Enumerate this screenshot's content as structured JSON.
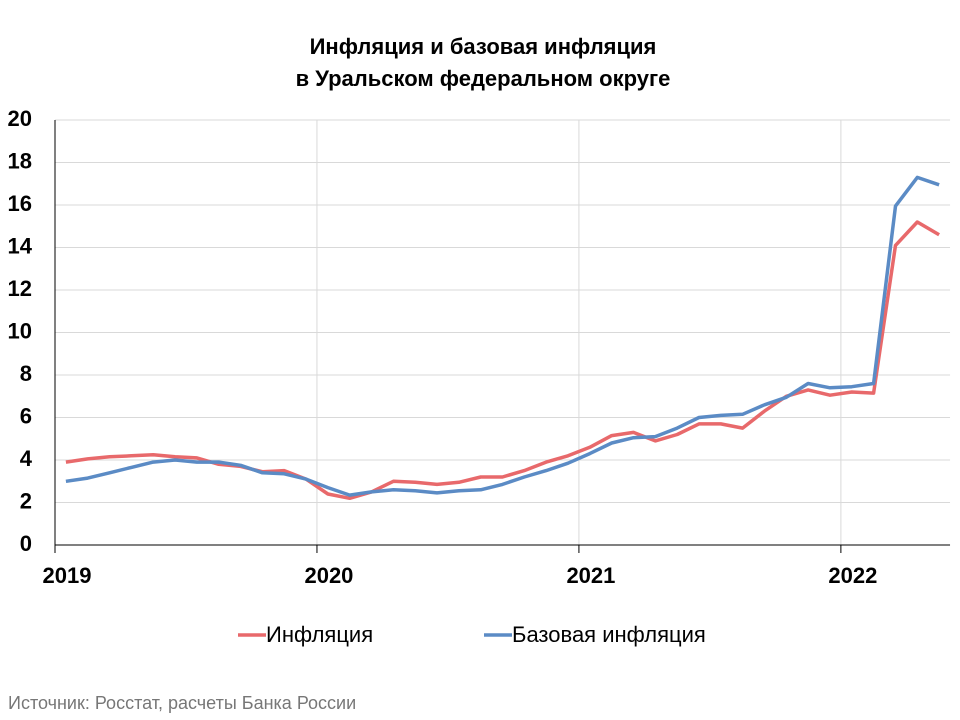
{
  "chart_data": {
    "type": "line",
    "title_lines": [
      "Инфляция и базовая инфляция",
      "в  Уральском федеральном округе"
    ],
    "categories": [
      "2019",
      null,
      null,
      null,
      null,
      null,
      null,
      null,
      null,
      null,
      null,
      null,
      "2020",
      null,
      null,
      null,
      null,
      null,
      null,
      null,
      null,
      null,
      null,
      null,
      "2021",
      null,
      null,
      null,
      null,
      null,
      null,
      null,
      null,
      null,
      null,
      null,
      "2022",
      null,
      null,
      null,
      null
    ],
    "series": [
      {
        "name": "Инфляция",
        "color": "#e8696b",
        "values": [
          3.9,
          4.05,
          4.15,
          4.2,
          4.25,
          4.15,
          4.1,
          3.8,
          3.7,
          3.45,
          3.5,
          3.1,
          2.4,
          2.2,
          2.5,
          3.0,
          2.95,
          2.85,
          2.95,
          3.2,
          3.2,
          3.5,
          3.9,
          4.2,
          4.6,
          5.15,
          5.3,
          4.9,
          5.2,
          5.7,
          5.7,
          5.5,
          6.3,
          7.0,
          7.3,
          7.05,
          7.2,
          7.15,
          14.1,
          15.2,
          14.6
        ]
      },
      {
        "name": "Базовая инфляция",
        "color": "#5b8bc5",
        "values": [
          3.0,
          3.15,
          3.4,
          3.65,
          3.9,
          4.0,
          3.9,
          3.9,
          3.75,
          3.4,
          3.35,
          3.1,
          2.7,
          2.35,
          2.5,
          2.6,
          2.55,
          2.45,
          2.55,
          2.6,
          2.85,
          3.2,
          3.5,
          3.85,
          4.3,
          4.8,
          5.05,
          5.1,
          5.5,
          6.0,
          6.1,
          6.15,
          6.6,
          6.95,
          7.6,
          7.4,
          7.45,
          7.6,
          15.95,
          17.3,
          16.95
        ]
      }
    ],
    "ylim": [
      0,
      20
    ],
    "yticks": [
      0,
      2,
      4,
      6,
      8,
      10,
      12,
      14,
      16,
      18,
      20
    ],
    "grid": true,
    "legend": "bottom",
    "source": "Источник: Росстат, расчеты Банка России"
  }
}
